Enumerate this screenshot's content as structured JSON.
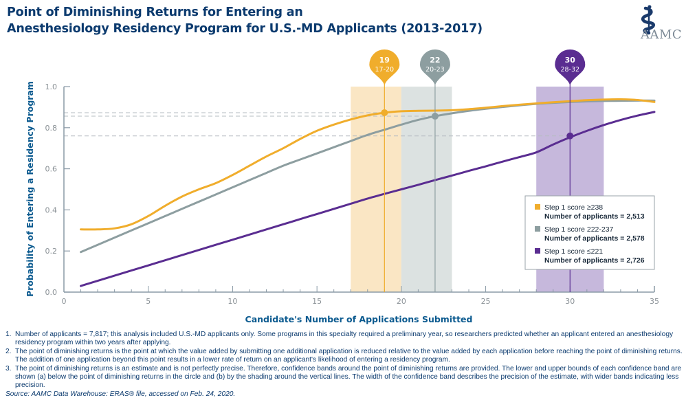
{
  "title": {
    "line1": "Point of Diminishing Returns for Entering an",
    "line2": "Anesthesiology Residency Program for U.S.-MD Applicants (2013-2017)"
  },
  "logo": {
    "icon": "caduceus-icon",
    "text": "AAMC",
    "color": "#1a3a6b"
  },
  "chart_data": {
    "type": "line",
    "title": "Point of Diminishing Returns for Entering an Anesthesiology Residency Program for U.S.-MD Applicants (2013-2017)",
    "xlabel": "Candidate's Number of Applications Submitted",
    "ylabel": "Probability of Entering a Residency Program",
    "xlim": [
      0,
      35
    ],
    "ylim": [
      0,
      1.0
    ],
    "xticks": [
      0,
      5,
      10,
      15,
      20,
      25,
      30,
      35
    ],
    "xtick_labels": [
      "0",
      "5",
      "10",
      "15",
      "20",
      "25",
      "30",
      "35"
    ],
    "yticks": [
      0,
      0.2,
      0.4,
      0.6,
      0.8,
      1.0
    ],
    "ytick_labels": [
      "0.0",
      "0.2",
      "0.4",
      "0.6",
      "0.8",
      "1.0"
    ],
    "grid": false,
    "legend_position": "bottom-right",
    "series": [
      {
        "name": "Step 1 score ≥238",
        "count_label": "Number of applicants = 2,513",
        "color": "#f0ad2c",
        "band_color": "#fae6c4",
        "x": [
          1,
          2,
          3,
          4,
          5,
          6,
          7,
          8,
          9,
          10,
          11,
          12,
          13,
          14,
          15,
          16,
          17,
          18,
          19,
          20,
          21,
          22,
          23,
          24,
          25,
          26,
          27,
          28,
          29,
          30,
          31,
          32,
          33,
          34,
          35
        ],
        "values": [
          0.305,
          0.305,
          0.31,
          0.33,
          0.37,
          0.42,
          0.465,
          0.5,
          0.53,
          0.57,
          0.615,
          0.66,
          0.7,
          0.745,
          0.785,
          0.815,
          0.84,
          0.86,
          0.873,
          0.88,
          0.882,
          0.883,
          0.885,
          0.89,
          0.897,
          0.905,
          0.912,
          0.918,
          0.924,
          0.929,
          0.934,
          0.937,
          0.938,
          0.935,
          0.925
        ],
        "pdr": {
          "x": 19,
          "y": 0.873,
          "label": "19",
          "ci_label": "17-20",
          "ci": [
            17,
            20
          ]
        }
      },
      {
        "name": "Step 1 score 222-237",
        "count_label": "Number of applicants = 2,578",
        "color": "#8d9ea0",
        "band_color": "#dce2e1",
        "x": [
          1,
          2,
          3,
          4,
          5,
          6,
          7,
          8,
          9,
          10,
          11,
          12,
          13,
          14,
          15,
          16,
          17,
          18,
          19,
          20,
          21,
          22,
          23,
          24,
          25,
          26,
          27,
          28,
          29,
          30,
          31,
          32,
          33,
          34,
          35
        ],
        "values": [
          0.195,
          0.23,
          0.265,
          0.3,
          0.335,
          0.37,
          0.405,
          0.44,
          0.475,
          0.51,
          0.545,
          0.58,
          0.615,
          0.645,
          0.675,
          0.705,
          0.735,
          0.765,
          0.79,
          0.815,
          0.838,
          0.856,
          0.87,
          0.882,
          0.892,
          0.901,
          0.909,
          0.916,
          0.921,
          0.925,
          0.928,
          0.93,
          0.931,
          0.932,
          0.932
        ],
        "pdr": {
          "x": 22,
          "y": 0.856,
          "label": "22",
          "ci_label": "20-23",
          "ci": [
            20,
            23
          ]
        }
      },
      {
        "name": "Step 1 score ≤221",
        "count_label": "Number of applicants = 2,726",
        "color": "#5a2d91",
        "band_color": "#c6b8dc",
        "x": [
          1,
          2,
          3,
          4,
          5,
          6,
          7,
          8,
          9,
          10,
          11,
          12,
          13,
          14,
          15,
          16,
          17,
          18,
          19,
          20,
          21,
          22,
          23,
          24,
          25,
          26,
          27,
          28,
          29,
          30,
          31,
          32,
          33,
          34,
          35
        ],
        "values": [
          0.03,
          0.055,
          0.08,
          0.105,
          0.13,
          0.155,
          0.18,
          0.205,
          0.23,
          0.255,
          0.28,
          0.305,
          0.33,
          0.355,
          0.38,
          0.405,
          0.43,
          0.455,
          0.478,
          0.5,
          0.522,
          0.545,
          0.567,
          0.59,
          0.612,
          0.635,
          0.657,
          0.68,
          0.7,
          0.76,
          0.775,
          0.79,
          0.8,
          0.81,
          0.82
        ],
        "pdr": {
          "x": 30,
          "y": 0.76,
          "label": "30",
          "ci_label": "28-32",
          "ci": [
            28,
            32
          ]
        }
      }
    ],
    "reference_lines_y": [
      0.873,
      0.856,
      0.76
    ]
  },
  "footnotes": [
    {
      "num": "1.",
      "text": "Number of applicants = 7,817; this analysis included U.S.-MD applicants only. Some programs in this specialty required a preliminary year, so researchers predicted whether an applicant entered an anesthesiology residency program within two years after applying."
    },
    {
      "num": "2.",
      "text": "The point of diminishing returns is the point at which the value added by submitting one additional application is reduced relative to the value added by each application before reaching the point of diminishing returns. The addition of one application beyond this point results in a lower rate of return on an applicant's likelihood of entering a residency program."
    },
    {
      "num": "3.",
      "text": "The point of diminishing returns is an estimate and is not perfectly precise. Therefore, confidence bands around the point of diminishing returns are provided. The lower and upper bounds of each confidence band are shown (a) below the point of diminishing returns in the circle and (b) by the shading around the vertical lines. The width of the confidence band describes the precision of the estimate, with wider bands indicating less precision."
    }
  ],
  "source": "Source: AAMC Data Warehouse: ERAS® file, accessed on Feb. 24, 2020."
}
